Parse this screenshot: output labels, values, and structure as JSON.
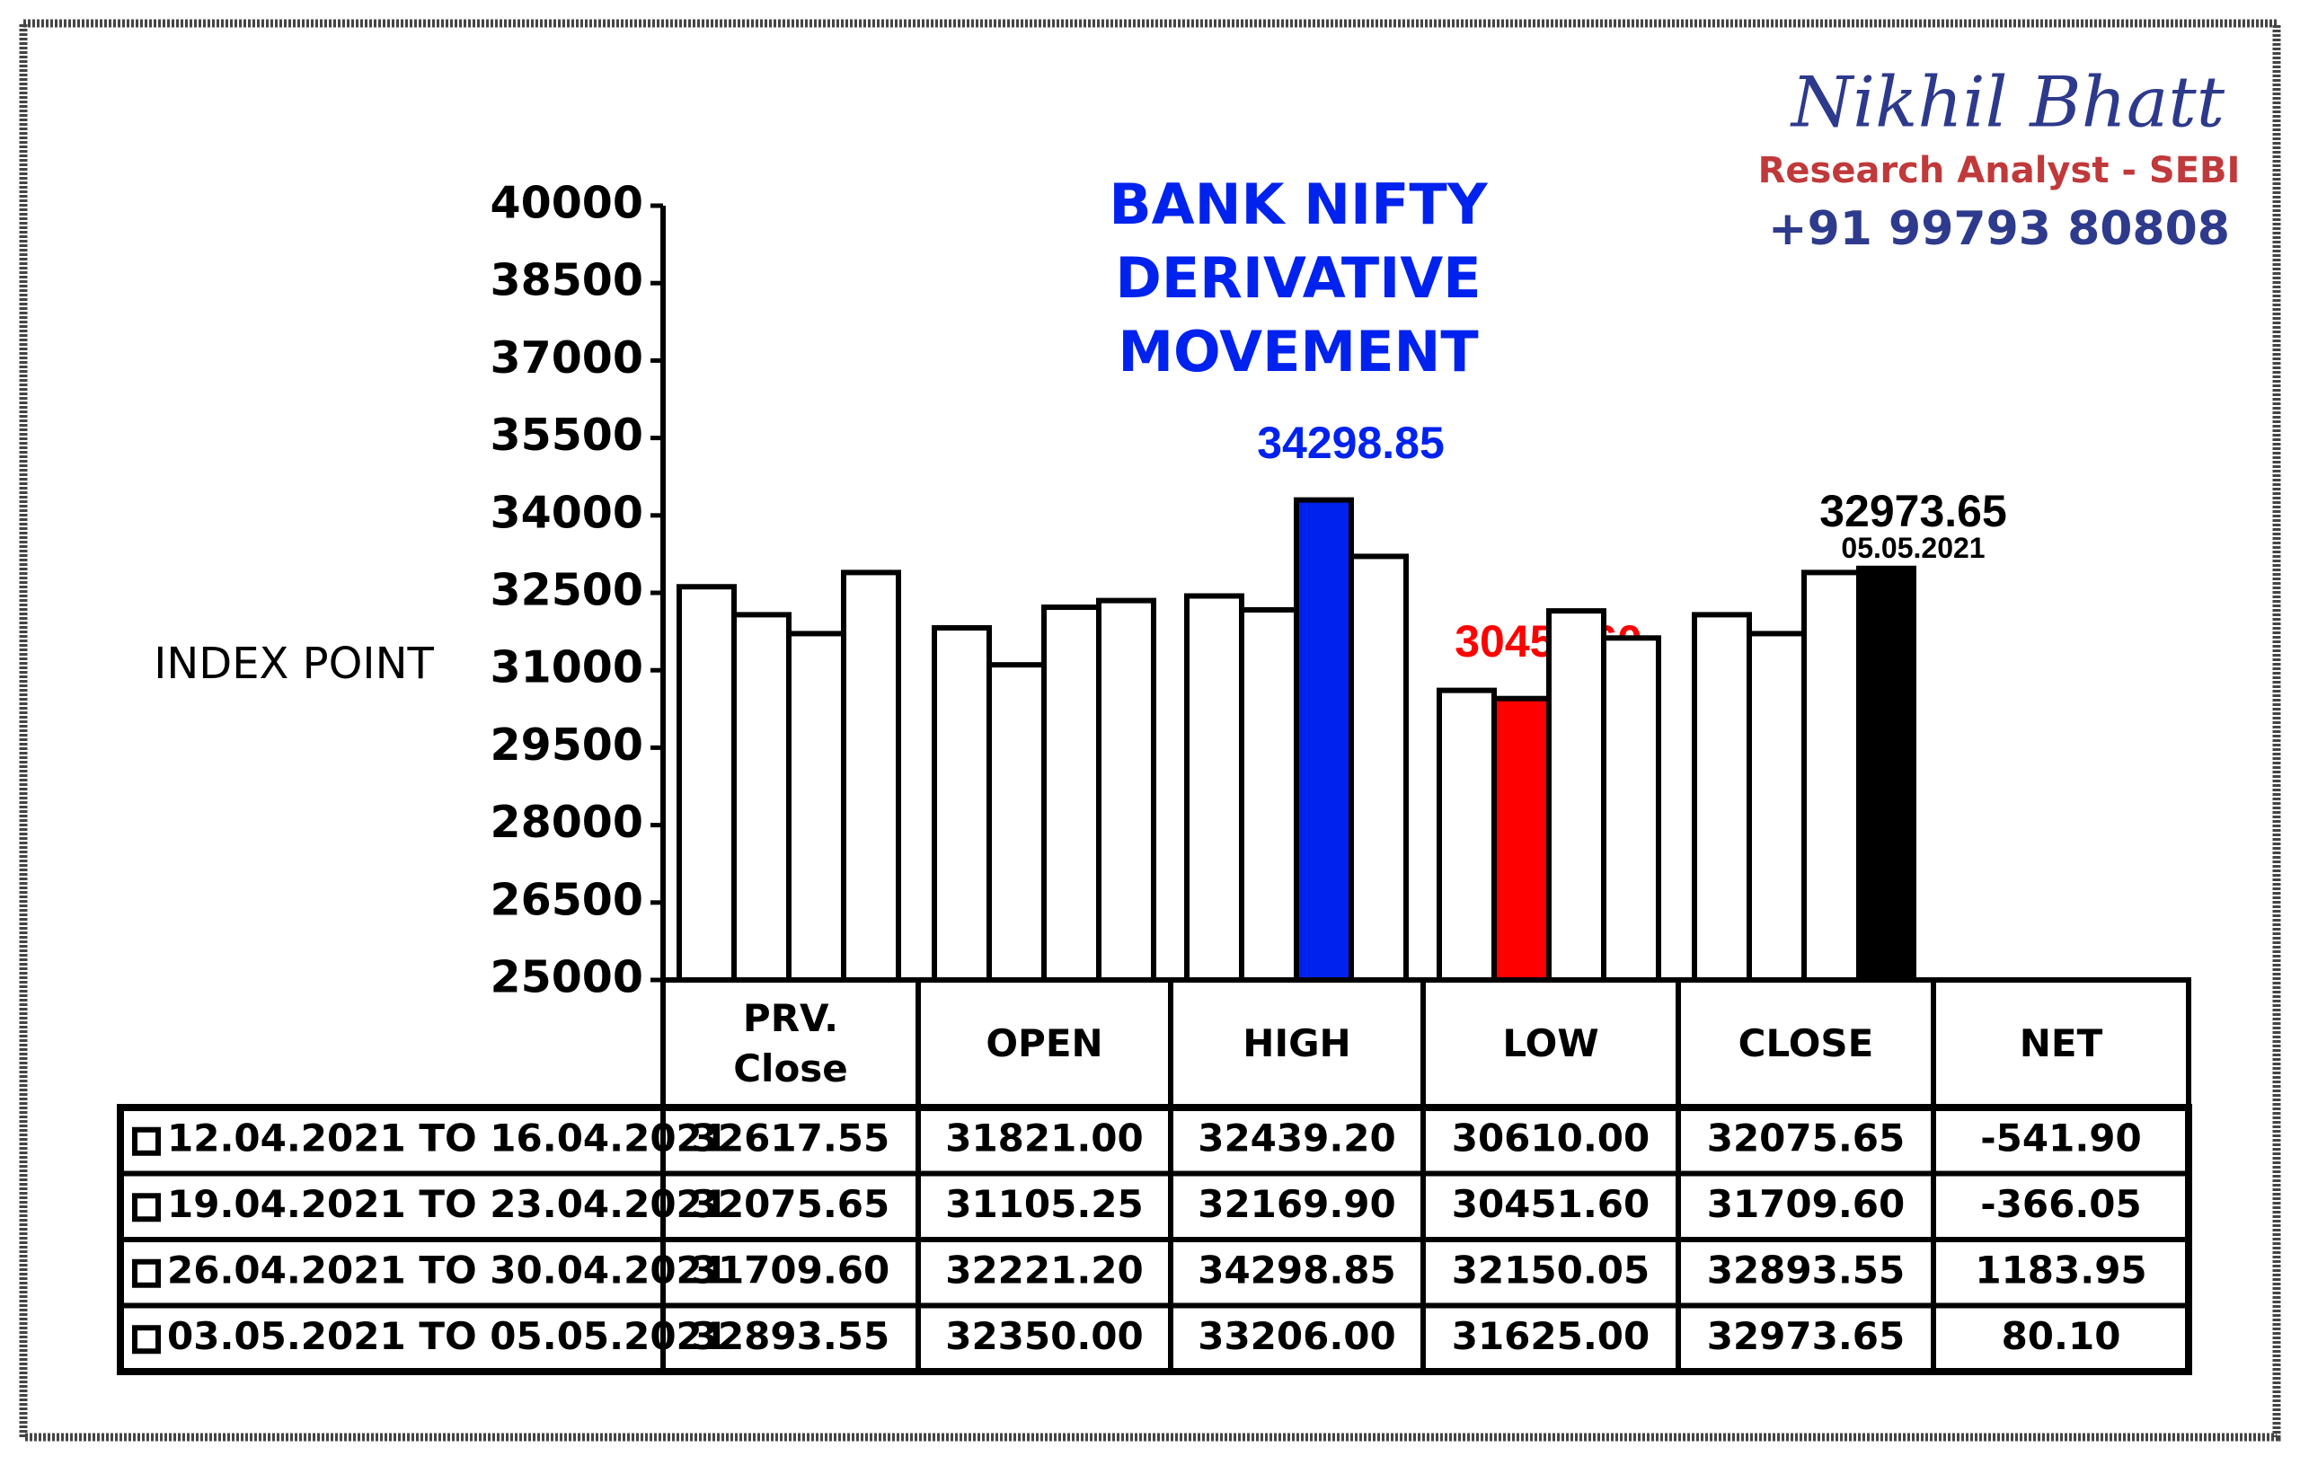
{
  "header": {
    "name": "Nikhil Bhatt",
    "role": "Research Analyst - SEBI",
    "phone": "+91 99793 80808"
  },
  "chart_data": {
    "type": "bar",
    "title": "BANK NIFTY DERIVATIVE MOVEMENT",
    "y_label": "INDEX POINT",
    "categories": [
      "PRV. Close",
      "OPEN",
      "HIGH",
      "LOW",
      "CLOSE"
    ],
    "net_header": "NET",
    "ylim": [
      25000,
      40000
    ],
    "yticks": [
      25000,
      26500,
      28000,
      29500,
      31000,
      32500,
      34000,
      35500,
      37000,
      38500,
      40000
    ],
    "annotations": [
      "05.05.2021"
    ],
    "series": [
      {
        "name": "12.04.2021 TO 16.04.2021",
        "values": [
          32617.55,
          31821,
          32439.2,
          30610,
          32075.65
        ],
        "value_labels": [
          "32617.55",
          "31821.00",
          "32439.20",
          "30610.00",
          "32075.65"
        ],
        "colors": [
          "#ffffff",
          "#ffffff",
          "#ffffff",
          "#ffffff",
          "#ffffff"
        ],
        "net": {
          "value": -541.9,
          "label": "-541.90"
        }
      },
      {
        "name": "19.04.2021 TO 23.04.2021",
        "values": [
          32075.65,
          31105.25,
          32169.9,
          30451.6,
          31709.6
        ],
        "value_labels": [
          "32075.65",
          "31105.25",
          "32169.90",
          "30451.60",
          "31709.60"
        ],
        "colors": [
          "#ffffff",
          "#ffffff",
          "#ffffff",
          "#ff0000",
          "#ffffff"
        ],
        "net": {
          "value": -366.05,
          "label": "-366.05"
        }
      },
      {
        "name": "26.04.2021 TO 30.04.2021",
        "values": [
          31709.6,
          32221.2,
          34298.85,
          32150.05,
          32893.55
        ],
        "value_labels": [
          "31709.60",
          "32221.20",
          "34298.85",
          "32150.05",
          "32893.55"
        ],
        "colors": [
          "#ffffff",
          "#ffffff",
          "#0022ee",
          "#ffffff",
          "#ffffff"
        ],
        "net": {
          "value": 1183.95,
          "label": "1183.95"
        }
      },
      {
        "name": "03.05.2021 TO 05.05.2021",
        "values": [
          32893.55,
          32350,
          33206,
          31625,
          32973.65
        ],
        "value_labels": [
          "32893.55",
          "32350.00",
          "33206.00",
          "31625.00",
          "32973.65"
        ],
        "colors": [
          "#ffffff",
          "#ffffff",
          "#ffffff",
          "#ffffff",
          "#000000"
        ],
        "net": {
          "value": 80.1,
          "label": "80.10"
        }
      }
    ]
  }
}
